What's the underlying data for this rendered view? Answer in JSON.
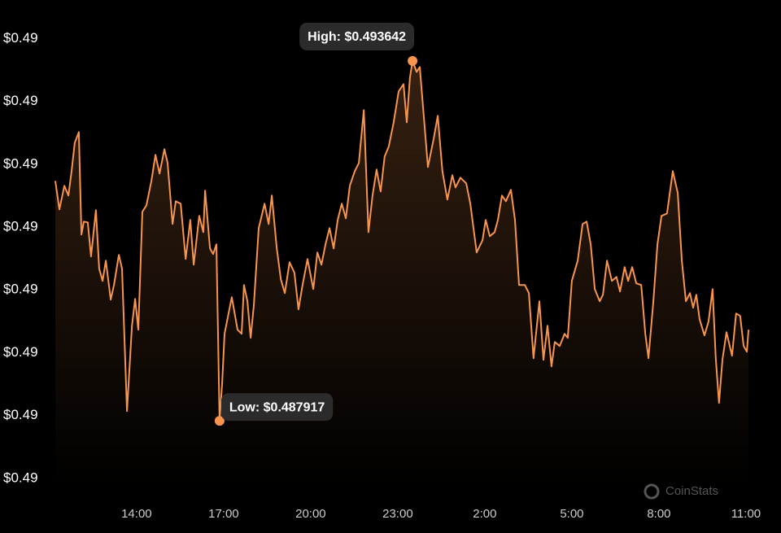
{
  "chart_data": {
    "type": "line",
    "color": "#f7944d",
    "x": [
      11.2,
      11.34,
      11.51,
      11.65,
      11.76,
      11.87,
      12.01,
      12.1,
      12.18,
      12.32,
      12.43,
      12.6,
      12.71,
      12.83,
      12.94,
      13.11,
      13.22,
      13.39,
      13.5,
      13.67,
      13.84,
      13.95,
      14.06,
      14.2,
      14.34,
      14.51,
      14.65,
      14.79,
      14.96,
      15.07,
      15.24,
      15.35,
      15.52,
      15.69,
      15.85,
      15.97,
      16.16,
      16.3,
      16.36,
      16.53,
      16.64,
      16.75,
      16.86,
      16.95,
      17.03,
      17.28,
      17.48,
      17.62,
      17.7,
      17.82,
      17.93,
      18.04,
      18.21,
      18.41,
      18.55,
      18.66,
      18.83,
      18.97,
      19.11,
      19.27,
      19.44,
      19.58,
      19.72,
      19.89,
      20.09,
      20.23,
      20.37,
      20.51,
      20.65,
      20.79,
      20.93,
      21.07,
      21.21,
      21.35,
      21.52,
      21.66,
      21.83,
      21.99,
      22.13,
      22.27,
      22.41,
      22.55,
      22.69,
      22.86,
      23.03,
      23.2,
      23.31,
      23.42,
      23.51,
      23.65,
      23.76,
      23.87,
      24.04,
      24.24,
      24.38,
      24.54,
      24.71,
      24.88,
      24.99,
      25.16,
      25.36,
      25.5,
      25.72,
      25.92,
      26.03,
      26.17,
      26.34,
      26.45,
      26.59,
      26.73,
      26.9,
      27.04,
      27.18,
      27.38,
      27.52,
      27.68,
      27.88,
      28.02,
      28.16,
      28.3,
      28.41,
      28.58,
      28.75,
      28.86,
      29.0,
      29.2,
      29.37,
      29.51,
      29.65,
      29.79,
      29.96,
      30.07,
      30.21,
      30.38,
      30.54,
      30.66,
      30.82,
      30.94,
      31.08,
      31.22,
      31.39,
      31.53,
      31.64,
      31.81,
      31.95,
      32.09,
      32.28,
      32.48,
      32.65,
      32.79,
      32.93,
      33.07,
      33.18,
      33.29,
      33.4,
      33.57,
      33.71,
      33.85,
      33.96,
      34.07,
      34.19,
      34.33,
      34.44,
      34.52,
      34.66,
      34.8,
      34.92,
      35.03,
      35.09
    ],
    "values": [
      0.491734,
      0.491281,
      0.491657,
      0.491501,
      0.49189,
      0.492342,
      0.492511,
      0.49088,
      0.491087,
      0.491074,
      0.490531,
      0.491268,
      0.490337,
      0.490143,
      0.490466,
      0.489845,
      0.490078,
      0.490557,
      0.490337,
      0.488072,
      0.489431,
      0.489858,
      0.489366,
      0.491243,
      0.491346,
      0.491734,
      0.492148,
      0.491851,
      0.492239,
      0.492019,
      0.491048,
      0.491411,
      0.491372,
      0.490492,
      0.491113,
      0.490401,
      0.491178,
      0.490919,
      0.491579,
      0.49066,
      0.49057,
      0.490725,
      0.487917,
      0.488525,
      0.489302,
      0.489884,
      0.489366,
      0.489302,
      0.490078,
      0.489819,
      0.489237,
      0.489754,
      0.490984,
      0.491372,
      0.491048,
      0.491501,
      0.49066,
      0.490169,
      0.489949,
      0.49044,
      0.490272,
      0.48969,
      0.490078,
      0.490492,
      0.490013,
      0.490596,
      0.490401,
      0.490725,
      0.490984,
      0.49066,
      0.491113,
      0.491372,
      0.491139,
      0.491657,
      0.49189,
      0.492019,
      0.49286,
      0.490919,
      0.491501,
      0.491915,
      0.491566,
      0.492123,
      0.492278,
      0.492666,
      0.493158,
      0.493274,
      0.492666,
      0.493378,
      0.493642,
      0.493468,
      0.493546,
      0.492925,
      0.491954,
      0.492407,
      0.49277,
      0.49189,
      0.491437,
      0.491825,
      0.491631,
      0.491786,
      0.491695,
      0.491372,
      0.490596,
      0.49079,
      0.491113,
      0.490854,
      0.490919,
      0.491113,
      0.491501,
      0.491411,
      0.491592,
      0.491113,
      0.490078,
      0.490078,
      0.489949,
      0.488913,
      0.489819,
      0.488888,
      0.489431,
      0.488784,
      0.489172,
      0.489107,
      0.489302,
      0.489237,
      0.490143,
      0.490466,
      0.491048,
      0.491087,
      0.490725,
      0.490013,
      0.489819,
      0.489923,
      0.490466,
      0.490143,
      0.490207,
      0.489974,
      0.490363,
      0.490143,
      0.490363,
      0.490104,
      0.490078,
      0.489302,
      0.488913,
      0.489819,
      0.490725,
      0.491178,
      0.491217,
      0.49189,
      0.49154,
      0.490466,
      0.489819,
      0.489949,
      0.489716,
      0.489923,
      0.489535,
      0.489276,
      0.489496,
      0.490013,
      0.488913,
      0.488202,
      0.488888,
      0.489327,
      0.489107,
      0.488952,
      0.489625,
      0.489586,
      0.489107,
      0.489017,
      0.489366
    ],
    "xlim": [
      11.2,
      35.1
    ],
    "xticks": [
      {
        "value": 14,
        "label": "14:00"
      },
      {
        "value": 17,
        "label": "17:00"
      },
      {
        "value": 20,
        "label": "20:00"
      },
      {
        "value": 23,
        "label": "23:00"
      },
      {
        "value": 26,
        "label": "2:00"
      },
      {
        "value": 29,
        "label": "5:00"
      },
      {
        "value": 32,
        "label": "8:00"
      },
      {
        "value": 35,
        "label": "11:00"
      }
    ],
    "ylim": [
      0.4866,
      0.4943
    ],
    "yticks": [
      {
        "value": 0.494,
        "label": "$0.49"
      },
      {
        "value": 0.493,
        "label": "$0.49"
      },
      {
        "value": 0.492,
        "label": "$0.49"
      },
      {
        "value": 0.491,
        "label": "$0.49"
      },
      {
        "value": 0.49,
        "label": "$0.49"
      },
      {
        "value": 0.489,
        "label": "$0.49"
      },
      {
        "value": 0.488,
        "label": "$0.49"
      },
      {
        "value": 0.487,
        "label": "$0.49"
      }
    ],
    "annotations": [
      "High: $0.493642",
      "Low: $0.487917"
    ],
    "watermark": "CoinStats"
  }
}
